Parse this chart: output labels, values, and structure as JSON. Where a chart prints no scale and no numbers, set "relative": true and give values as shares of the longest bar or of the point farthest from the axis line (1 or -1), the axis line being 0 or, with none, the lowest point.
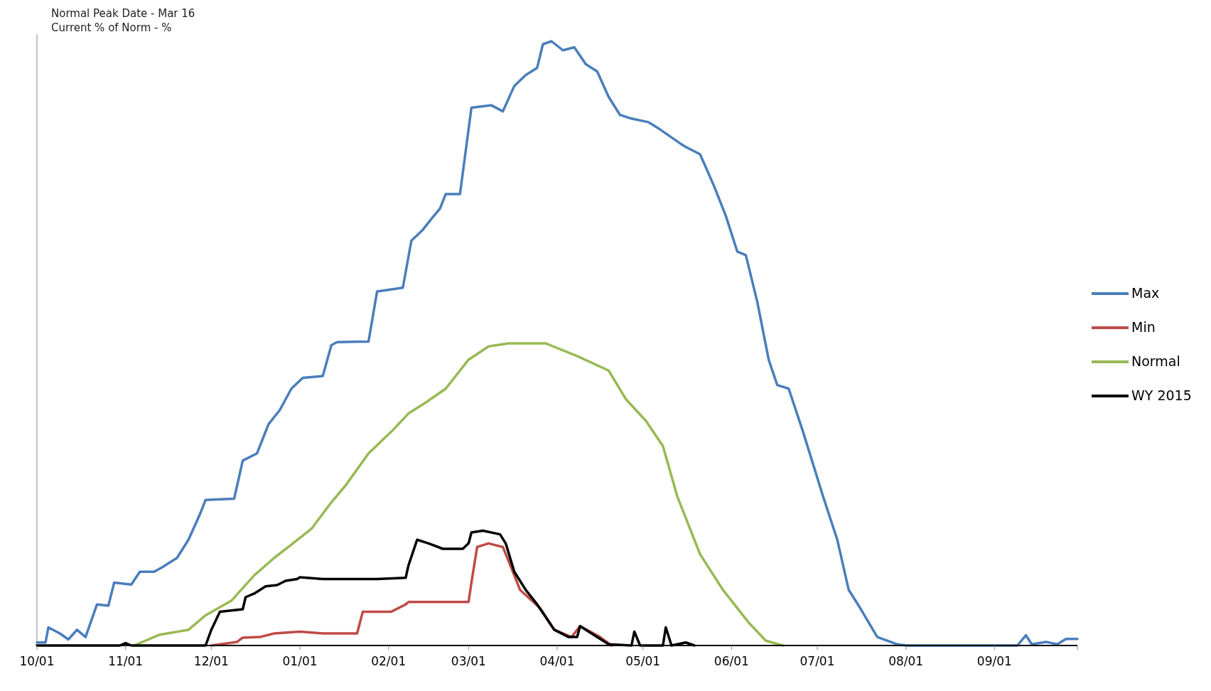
{
  "chart_data": {
    "type": "line",
    "relative": true,
    "legend": "right",
    "tick_labels": "x",
    "line_style": "solid",
    "annotations": [
      "Normal Peak Date - Mar 16",
      "Current % of Norm - %"
    ],
    "xlim": [
      "2014-10-01",
      "2015-09-30"
    ],
    "xticks": [
      {
        "value": "2014-10-01",
        "label": "10/01"
      },
      {
        "value": "2014-11-01",
        "label": "11/01"
      },
      {
        "value": "2014-12-01",
        "label": "12/01"
      },
      {
        "value": "2015-01-01",
        "label": "01/01"
      },
      {
        "value": "2015-02-01",
        "label": "02/01"
      },
      {
        "value": "2015-03-01",
        "label": "03/01"
      },
      {
        "value": "2015-04-01",
        "label": "04/01"
      },
      {
        "value": "2015-05-01",
        "label": "05/01"
      },
      {
        "value": "2015-06-01",
        "label": "06/01"
      },
      {
        "value": "2015-07-01",
        "label": "07/01"
      },
      {
        "value": "2015-08-01",
        "label": "08/01"
      },
      {
        "value": "2015-09-01",
        "label": "09/01"
      }
    ],
    "series": [
      {
        "name": "Max",
        "color": "#4a7ebb",
        "x": [
          "2014-10-01",
          "2014-10-04",
          "2014-10-05",
          "2014-10-09",
          "2014-10-12",
          "2014-10-15",
          "2014-10-18",
          "2014-10-22",
          "2014-10-26",
          "2014-10-28",
          "2014-11-03",
          "2014-11-06",
          "2014-11-11",
          "2014-11-14",
          "2014-11-19",
          "2014-11-23",
          "2014-11-27",
          "2014-11-29",
          "2014-12-09",
          "2014-12-12",
          "2014-12-17",
          "2014-12-21",
          "2014-12-25",
          "2014-12-29",
          "2015-01-02",
          "2015-01-09",
          "2015-01-12",
          "2015-01-14",
          "2015-01-25",
          "2015-01-28",
          "2015-02-06",
          "2015-02-09",
          "2015-02-13",
          "2015-02-16",
          "2015-02-19",
          "2015-02-21",
          "2015-02-26",
          "2015-03-02",
          "2015-03-09",
          "2015-03-13",
          "2015-03-17",
          "2015-03-21",
          "2015-03-25",
          "2015-03-27",
          "2015-03-30",
          "2015-04-03",
          "2015-04-07",
          "2015-04-11",
          "2015-04-15",
          "2015-04-19",
          "2015-04-23",
          "2015-04-27",
          "2015-05-03",
          "2015-05-07",
          "2015-05-14",
          "2015-05-16",
          "2015-05-21",
          "2015-05-26",
          "2015-05-30",
          "2015-06-03",
          "2015-06-06",
          "2015-06-10",
          "2015-06-14",
          "2015-06-17",
          "2015-06-21",
          "2015-06-26",
          "2015-07-03",
          "2015-07-08",
          "2015-07-12",
          "2015-07-16",
          "2015-07-22",
          "2015-07-29",
          "2015-08-01",
          "2015-09-09",
          "2015-09-12",
          "2015-09-14",
          "2015-09-19",
          "2015-09-23",
          "2015-09-26",
          "2015-09-30"
        ],
        "values": [
          0.005,
          0.005,
          0.03,
          0.02,
          0.01,
          0.026,
          0.014,
          0.068,
          0.066,
          0.104,
          0.101,
          0.122,
          0.122,
          0.13,
          0.145,
          0.175,
          0.217,
          0.241,
          0.243,
          0.306,
          0.318,
          0.366,
          0.39,
          0.425,
          0.443,
          0.446,
          0.497,
          0.502,
          0.503,
          0.586,
          0.592,
          0.67,
          0.688,
          0.706,
          0.723,
          0.747,
          0.747,
          0.89,
          0.894,
          0.884,
          0.926,
          0.944,
          0.956,
          0.995,
          1.0,
          0.985,
          0.99,
          0.962,
          0.95,
          0.908,
          0.878,
          0.872,
          0.866,
          0.854,
          0.831,
          0.825,
          0.813,
          0.759,
          0.711,
          0.652,
          0.646,
          0.569,
          0.473,
          0.431,
          0.425,
          0.354,
          0.247,
          0.175,
          0.092,
          0.062,
          0.014,
          0.002,
          0,
          0,
          0.017,
          0.002,
          0.006,
          0.002,
          0.011,
          0.011
        ]
      },
      {
        "name": "Min",
        "color": "#be4b48",
        "x": [
          "2014-12-01",
          "2014-12-10",
          "2014-12-12",
          "2014-12-18",
          "2014-12-23",
          "2015-01-01",
          "2015-01-09",
          "2015-01-21",
          "2015-01-23",
          "2015-02-02",
          "2015-02-07",
          "2015-02-08",
          "2015-03-01",
          "2015-03-02",
          "2015-03-04",
          "2015-03-08",
          "2015-03-13",
          "2015-03-16",
          "2015-03-19",
          "2015-03-26",
          "2015-03-31",
          "2015-04-06",
          "2015-04-09",
          "2015-04-16",
          "2015-04-20"
        ],
        "values": [
          0,
          0.006,
          0.013,
          0.014,
          0.02,
          0.023,
          0.02,
          0.02,
          0.056,
          0.056,
          0.068,
          0.072,
          0.072,
          0.104,
          0.163,
          0.169,
          0.163,
          0.128,
          0.092,
          0.062,
          0.026,
          0.014,
          0.032,
          0.014,
          0
        ]
      },
      {
        "name": "Normal",
        "color": "#98b954",
        "x": [
          "2014-11-04",
          "2014-11-13",
          "2014-11-23",
          "2014-11-29",
          "2014-12-08",
          "2014-12-16",
          "2014-12-23",
          "2014-12-29",
          "2015-01-05",
          "2015-01-12",
          "2015-01-17",
          "2015-01-25",
          "2015-02-02",
          "2015-02-08",
          "2015-02-14",
          "2015-02-21",
          "2015-03-01",
          "2015-03-08",
          "2015-03-15",
          "2015-03-28",
          "2015-04-08",
          "2015-04-19",
          "2015-04-25",
          "2015-05-02",
          "2015-05-08",
          "2015-05-13",
          "2015-05-21",
          "2015-05-29",
          "2015-06-07",
          "2015-06-13",
          "2015-06-19"
        ],
        "values": [
          0,
          0.018,
          0.026,
          0.05,
          0.074,
          0.116,
          0.145,
          0.167,
          0.193,
          0.237,
          0.265,
          0.318,
          0.354,
          0.384,
          0.402,
          0.425,
          0.473,
          0.495,
          0.5,
          0.5,
          0.479,
          0.455,
          0.408,
          0.372,
          0.33,
          0.247,
          0.151,
          0.092,
          0.038,
          0.008,
          0
        ]
      },
      {
        "name": "WY 2015",
        "color": "#000000",
        "x": [
          "2014-10-01",
          "2014-10-30",
          "2014-11-01",
          "2014-11-03",
          "2014-11-29",
          "2014-12-01",
          "2014-12-04",
          "2014-12-12",
          "2014-12-13",
          "2014-12-16",
          "2014-12-20",
          "2014-12-24",
          "2014-12-27",
          "2014-12-31",
          "2015-01-01",
          "2015-01-09",
          "2015-01-28",
          "2015-02-07",
          "2015-02-08",
          "2015-02-11",
          "2015-02-15",
          "2015-02-20",
          "2015-02-27",
          "2015-03-01",
          "2015-03-02",
          "2015-03-06",
          "2015-03-12",
          "2015-03-14",
          "2015-03-17",
          "2015-03-21",
          "2015-03-25",
          "2015-03-31",
          "2015-04-05",
          "2015-04-08",
          "2015-04-09",
          "2015-04-13",
          "2015-04-19",
          "2015-04-27",
          "2015-04-28",
          "2015-04-30",
          "2015-05-08",
          "2015-05-09",
          "2015-05-11",
          "2015-05-16",
          "2015-05-19"
        ],
        "values": [
          0,
          0,
          0.004,
          0,
          0,
          0.026,
          0.056,
          0.06,
          0.08,
          0.086,
          0.098,
          0.1,
          0.107,
          0.11,
          0.113,
          0.11,
          0.11,
          0.112,
          0.133,
          0.175,
          0.169,
          0.16,
          0.16,
          0.169,
          0.187,
          0.19,
          0.184,
          0.169,
          0.122,
          0.092,
          0.068,
          0.026,
          0.014,
          0.014,
          0.032,
          0.02,
          0.002,
          0,
          0.023,
          0,
          0,
          0.03,
          0,
          0.005,
          0
        ]
      }
    ]
  }
}
